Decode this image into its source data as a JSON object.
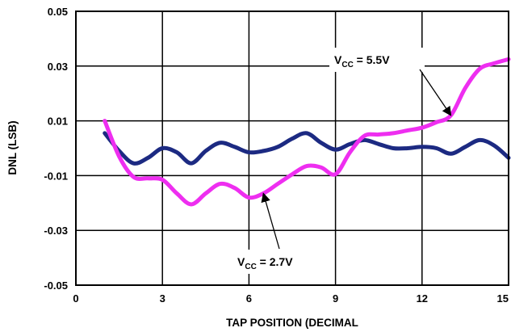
{
  "chart_data": {
    "type": "line",
    "title": "",
    "xlabel": "TAP POSITION (DECIMAL",
    "ylabel": "DNL (LSB)",
    "xlim": [
      0,
      15
    ],
    "ylim": [
      -0.05,
      0.05
    ],
    "x_ticks": [
      "0",
      "3",
      "6",
      "9",
      "12",
      "15"
    ],
    "y_ticks": [
      "-0.05",
      "-0.03",
      "-0.01",
      "0.01",
      "0.03",
      "0.05"
    ],
    "grid": true,
    "legend": "none",
    "series": [
      {
        "name": "V_CC = 2.7V",
        "color": "#1c2a82",
        "x": [
          1.0,
          1.5,
          2.0,
          2.5,
          3.0,
          3.5,
          4.0,
          4.5,
          5.0,
          5.5,
          6.0,
          6.5,
          7.0,
          7.5,
          8.0,
          8.5,
          9.0,
          9.5,
          10.0,
          10.5,
          11.0,
          11.5,
          12.0,
          12.5,
          13.0,
          13.5,
          14.0,
          14.5,
          15.0
        ],
        "y": [
          0.0055,
          -0.001,
          -0.0055,
          -0.0035,
          0.0,
          -0.0015,
          -0.0055,
          -0.001,
          0.002,
          0.0005,
          -0.0015,
          -0.001,
          0.0005,
          0.0035,
          0.0055,
          0.002,
          -0.0005,
          0.0015,
          0.003,
          0.0015,
          0.0,
          0.0,
          0.0005,
          0.0,
          -0.002,
          0.0005,
          0.003,
          0.001,
          -0.0035
        ]
      },
      {
        "name": "V_CC = 5.5V",
        "color": "#ee2ef0",
        "x": [
          1.0,
          1.5,
          2.0,
          2.5,
          3.0,
          3.5,
          4.0,
          4.5,
          5.0,
          5.5,
          6.0,
          6.5,
          7.0,
          7.5,
          8.0,
          8.5,
          9.0,
          9.5,
          10.0,
          10.5,
          11.0,
          11.5,
          12.0,
          12.5,
          13.0,
          13.5,
          14.0,
          14.5,
          15.0
        ],
        "y": [
          0.01,
          -0.003,
          -0.0105,
          -0.011,
          -0.0115,
          -0.0165,
          -0.0205,
          -0.0165,
          -0.013,
          -0.0145,
          -0.018,
          -0.0165,
          -0.013,
          -0.0095,
          -0.0065,
          -0.007,
          -0.0095,
          -0.0015,
          0.0045,
          0.005,
          0.0055,
          0.0065,
          0.0075,
          0.0095,
          0.012,
          0.022,
          0.029,
          0.031,
          0.0325
        ]
      }
    ],
    "annotations": [
      {
        "label": "V",
        "sub": "CC",
        "rest": " = 5.5V",
        "target": [
          13.0,
          0.012
        ]
      },
      {
        "label": "V",
        "sub": "CC",
        "rest": " = 2.7V",
        "target": [
          6.5,
          -0.0165
        ]
      }
    ]
  }
}
